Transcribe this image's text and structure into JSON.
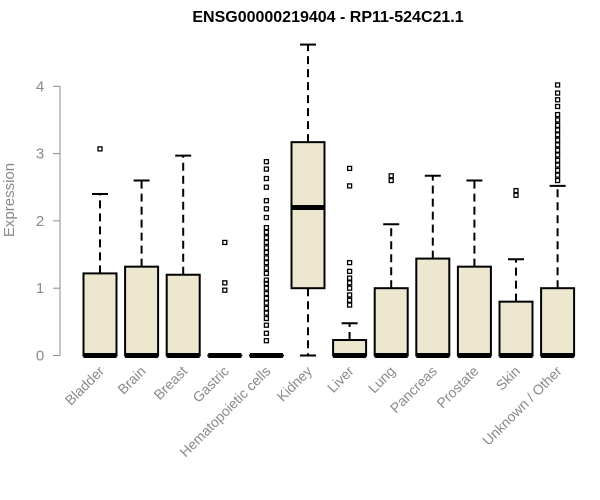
{
  "chart_data": {
    "type": "box",
    "title": "ENSG00000219404 - RP11-524C21.1",
    "ylabel": "Expression",
    "ylim": [
      0,
      4.5
    ],
    "yticks": [
      0,
      1,
      2,
      3,
      4
    ],
    "grid": false,
    "colors": {
      "box_fill": "#ede7cf",
      "stroke": "#000000",
      "axis": "#8a8a8a"
    },
    "categories": [
      "Bladder",
      "Brain",
      "Breast",
      "Gastric",
      "Hematopoietic cells",
      "Kidney",
      "Liver",
      "Lung",
      "Pancreas",
      "Prostate",
      "Skin",
      "Unknown / Other"
    ],
    "boxes": [
      {
        "q1": 0,
        "median": 0,
        "q3": 1.22,
        "whisker_low": 0,
        "whisker_high": 2.4,
        "outliers": [
          3.07
        ]
      },
      {
        "q1": 0,
        "median": 0,
        "q3": 1.32,
        "whisker_low": 0,
        "whisker_high": 2.6,
        "outliers": []
      },
      {
        "q1": 0,
        "median": 0,
        "q3": 1.2,
        "whisker_low": 0,
        "whisker_high": 2.97,
        "outliers": []
      },
      {
        "q1": 0,
        "median": 0,
        "q3": 0,
        "whisker_low": 0,
        "whisker_high": 0,
        "outliers": [
          0.97,
          1.08,
          1.68
        ]
      },
      {
        "q1": 0,
        "median": 0,
        "q3": 0,
        "whisker_low": 0,
        "whisker_high": 0,
        "outliers": [
          0.22,
          0.33,
          0.45,
          0.55,
          0.63,
          0.7,
          0.78,
          0.85,
          0.92,
          1.0,
          1.07,
          1.12,
          1.22,
          1.3,
          1.38,
          1.45,
          1.53,
          1.6,
          1.68,
          1.75,
          1.83,
          1.9,
          2.05,
          2.18,
          2.3,
          2.5,
          2.63,
          2.77,
          2.88
        ]
      },
      {
        "q1": 1.0,
        "median": 2.2,
        "q3": 3.17,
        "whisker_low": 0,
        "whisker_high": 4.62,
        "outliers": []
      },
      {
        "q1": 0,
        "median": 0,
        "q3": 0.23,
        "whisker_low": 0,
        "whisker_high": 0.48,
        "outliers": [
          0.75,
          0.82,
          0.9,
          1.0,
          1.08,
          1.15,
          1.25,
          1.38,
          2.52,
          2.78
        ]
      },
      {
        "q1": 0,
        "median": 0,
        "q3": 1.0,
        "whisker_low": 0,
        "whisker_high": 1.95,
        "outliers": [
          2.6,
          2.67
        ]
      },
      {
        "q1": 0,
        "median": 0,
        "q3": 1.44,
        "whisker_low": 0,
        "whisker_high": 2.67,
        "outliers": []
      },
      {
        "q1": 0,
        "median": 0,
        "q3": 1.32,
        "whisker_low": 0,
        "whisker_high": 2.6,
        "outliers": []
      },
      {
        "q1": 0,
        "median": 0,
        "q3": 0.8,
        "whisker_low": 0,
        "whisker_high": 1.43,
        "outliers": [
          2.38,
          2.45
        ]
      },
      {
        "q1": 0,
        "median": 0,
        "q3": 1.0,
        "whisker_low": 0,
        "whisker_high": 2.52,
        "outliers": [
          2.6,
          2.68,
          2.75,
          2.83,
          2.9,
          2.98,
          3.05,
          3.13,
          3.2,
          3.28,
          3.35,
          3.42,
          3.5,
          3.58,
          3.7,
          3.8,
          3.9,
          4.02
        ]
      }
    ]
  }
}
